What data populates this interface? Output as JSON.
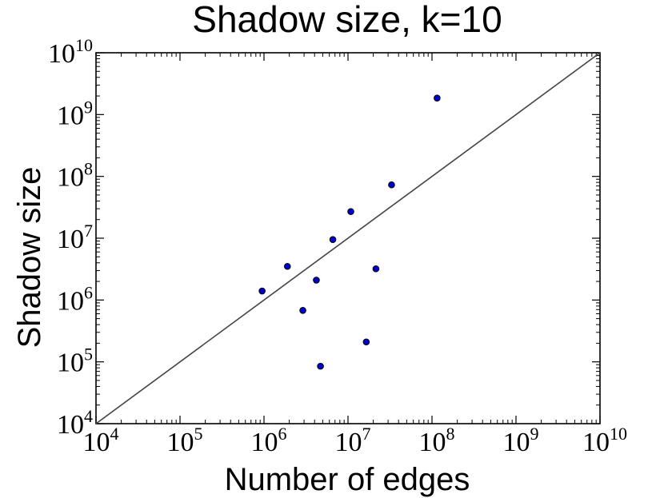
{
  "chart_data": {
    "type": "scatter",
    "title": "Shadow size, k=10",
    "xlabel": "Number of edges",
    "ylabel": "Shadow size",
    "xscale": "log",
    "yscale": "log",
    "xlim": [
      10000,
      10000000000
    ],
    "ylim": [
      10000,
      10000000000
    ],
    "tick_base": "10",
    "x_ticks": [
      {
        "value": 10000,
        "exp": "4"
      },
      {
        "value": 100000,
        "exp": "5"
      },
      {
        "value": 1000000,
        "exp": "6"
      },
      {
        "value": 10000000,
        "exp": "7"
      },
      {
        "value": 100000000,
        "exp": "8"
      },
      {
        "value": 1000000000,
        "exp": "9"
      },
      {
        "value": 10000000000,
        "exp": "10"
      }
    ],
    "y_ticks": [
      {
        "value": 10000,
        "exp": "4"
      },
      {
        "value": 100000,
        "exp": "5"
      },
      {
        "value": 1000000,
        "exp": "6"
      },
      {
        "value": 10000000,
        "exp": "7"
      },
      {
        "value": 100000000,
        "exp": "8"
      },
      {
        "value": 1000000000,
        "exp": "9"
      },
      {
        "value": 10000000000,
        "exp": "10"
      }
    ],
    "grid": false,
    "points": [
      {
        "x": 950000,
        "y": 1400000
      },
      {
        "x": 1900000,
        "y": 3500000
      },
      {
        "x": 2900000,
        "y": 680000
      },
      {
        "x": 4200000,
        "y": 2100000
      },
      {
        "x": 4700000,
        "y": 85000
      },
      {
        "x": 6600000,
        "y": 9500000
      },
      {
        "x": 10800000,
        "y": 27000000
      },
      {
        "x": 16500000,
        "y": 210000
      },
      {
        "x": 21500000,
        "y": 3200000
      },
      {
        "x": 33000000,
        "y": 73000000
      },
      {
        "x": 115000000,
        "y": 1850000000
      }
    ],
    "reference_line": {
      "from": [
        10000,
        10000
      ],
      "to": [
        10000000000,
        10000000000
      ]
    },
    "colors": {
      "marker": "#0000cc",
      "marker_edge": "#000000",
      "line": "#444444",
      "axes": "#000000"
    }
  }
}
